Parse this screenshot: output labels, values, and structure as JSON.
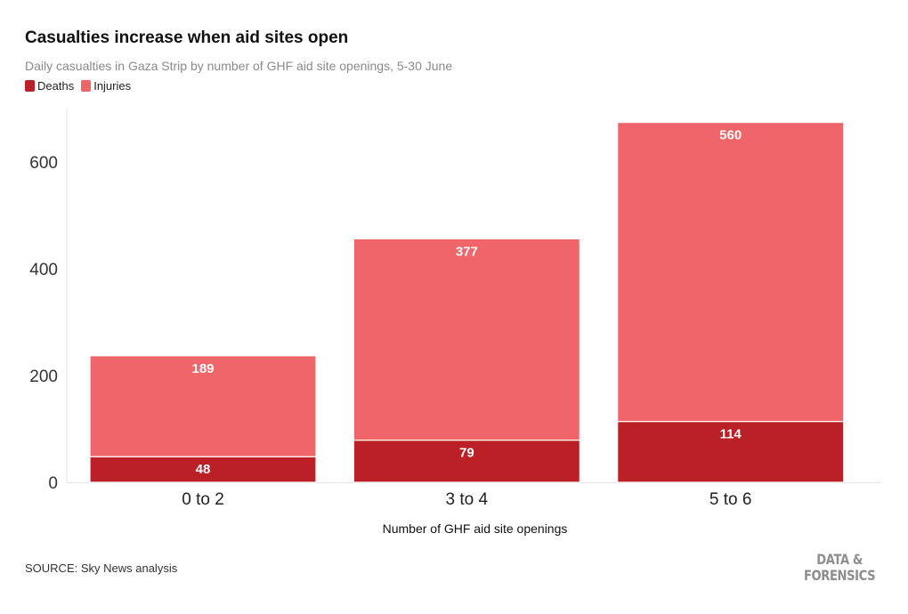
{
  "chart_data": {
    "type": "bar",
    "stacked": true,
    "title": "Casualties increase when aid sites open",
    "subtitle": "Daily casualties in Gaza Strip by number of GHF aid site openings, 5-30 June",
    "xlabel": "Number of GHF aid site openings",
    "ylabel": "",
    "categories": [
      "0 to 2",
      "3 to 4",
      "5 to 6"
    ],
    "series": [
      {
        "name": "Deaths",
        "values": [
          48,
          79,
          114
        ],
        "color": "#bb2026"
      },
      {
        "name": "Injuries",
        "values": [
          189,
          377,
          560
        ],
        "color": "#ef6569"
      }
    ],
    "ylim": [
      0,
      700
    ],
    "yticks": [
      0,
      200,
      400,
      600
    ],
    "grid": false,
    "legend_position": "top-left"
  },
  "source": "SOURCE: Sky News analysis",
  "logo": {
    "line1": "DATA &",
    "line2": "FORENSICS"
  }
}
